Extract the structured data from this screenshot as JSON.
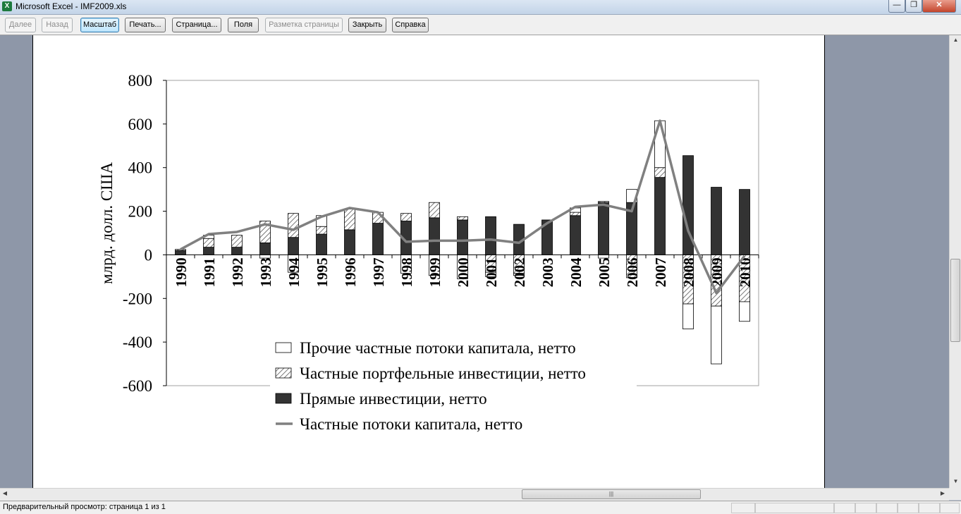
{
  "window": {
    "title": "Microsoft Excel - IMF2009.xls",
    "app_icon": "X",
    "min_glyph": "—",
    "max_glyph": "❐",
    "close_glyph": "✕"
  },
  "toolbar": {
    "buttons": [
      {
        "label": "Далее",
        "state": "disabled"
      },
      {
        "label": "Назад",
        "state": "disabled"
      },
      {
        "label": "Масштаб",
        "state": "active"
      },
      {
        "label": "Печать...",
        "state": "normal"
      },
      {
        "label": "Страница...",
        "state": "normal"
      },
      {
        "label": "Поля",
        "state": "normal"
      },
      {
        "label": "Разметка страницы",
        "state": "disabled"
      },
      {
        "label": "Закрыть",
        "state": "normal"
      },
      {
        "label": "Справка",
        "state": "normal"
      }
    ]
  },
  "status": {
    "text": "Предварительный просмотр: страница 1 из 1"
  },
  "chart_data": {
    "type": "bar",
    "stacked": true,
    "title": "",
    "xlabel": "",
    "ylabel": "млрд. долл. США",
    "ylim": [
      -600,
      800
    ],
    "yticks": [
      800,
      600,
      400,
      200,
      0,
      -200,
      -400,
      -600
    ],
    "categories": [
      "1990",
      "1991",
      "1992",
      "1993",
      "1994",
      "1995",
      "1996",
      "1997",
      "1998",
      "1999",
      "2000",
      "2001",
      "2002",
      "2003",
      "2004",
      "2005",
      "2006",
      "2007",
      "2008",
      "2009",
      "2010"
    ],
    "series": [
      {
        "name": "Прямые инвестиции, нетто",
        "kind": "bar",
        "color": "#333333",
        "values": [
          20,
          35,
          35,
          55,
          80,
          95,
          115,
          145,
          155,
          170,
          160,
          175,
          140,
          160,
          180,
          240,
          240,
          355,
          455,
          310,
          300
        ]
      },
      {
        "name": "Частные портфельные инвестиции, нетто",
        "kind": "bar",
        "color": "hatched",
        "values": [
          5,
          40,
          55,
          100,
          110,
          35,
          95,
          50,
          35,
          70,
          15,
          -80,
          -85,
          0,
          15,
          5,
          -105,
          45,
          -225,
          -235,
          -215
        ]
      },
      {
        "name": "Прочие частные потоки капитала, нетто",
        "kind": "bar",
        "color": "#ffffff",
        "values": [
          0,
          15,
          0,
          -15,
          -80,
          50,
          0,
          0,
          -85,
          -95,
          -110,
          -20,
          -10,
          0,
          20,
          -15,
          60,
          215,
          -115,
          -265,
          -90
        ]
      },
      {
        "name": "Частные потоки капитала, нетто",
        "kind": "line",
        "color": "#808080",
        "values": [
          25,
          95,
          105,
          140,
          115,
          175,
          215,
          195,
          60,
          65,
          65,
          70,
          55,
          145,
          220,
          230,
          200,
          615,
          110,
          -175,
          -5
        ]
      }
    ],
    "legend_position": "bottom-center",
    "legend_order": [
      "Прочие частные потоки капитала, нетто",
      "Частные портфельные инвестиции, нетто",
      "Прямые инвестиции, нетто",
      "Частные потоки капитала, нетто"
    ],
    "grid": false
  }
}
